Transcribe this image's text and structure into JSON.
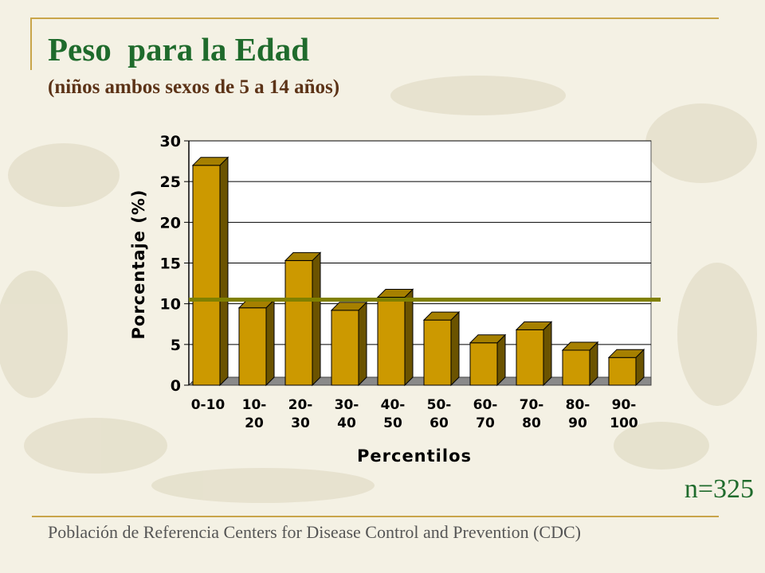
{
  "slide": {
    "title": "Peso  para la Edad",
    "subtitle": "(niños ambos sexos de 5 a 14 años)",
    "sample_size": "n=325",
    "footer": "Población de Referencia Centers for Disease Control and Prevention (CDC)"
  },
  "colors": {
    "bar_front": "#cc9900",
    "bar_side": "#6b5300",
    "bar_top": "#a68000",
    "reference_line": "#808000",
    "title": "#1f6b2c",
    "accent_rule": "#c9a54a"
  },
  "chart_data": {
    "type": "bar",
    "categories": [
      "0-10",
      "10-20",
      "20-30",
      "30-40",
      "40-50",
      "50-60",
      "60-70",
      "70-80",
      "80-90",
      "90-100"
    ],
    "category_labels": [
      [
        "0-10"
      ],
      [
        "10-",
        "20"
      ],
      [
        "20-",
        "30"
      ],
      [
        "30-",
        "40"
      ],
      [
        "40-",
        "50"
      ],
      [
        "50-",
        "60"
      ],
      [
        "60-",
        "70"
      ],
      [
        "70-",
        "80"
      ],
      [
        "80-",
        "90"
      ],
      [
        "90-",
        "100"
      ]
    ],
    "values": [
      27,
      9.5,
      15.3,
      9.2,
      10.8,
      8,
      5.2,
      6.8,
      4.3,
      3.4
    ],
    "reference_line": 10.5,
    "xlabel": "Percentilos",
    "ylabel": "Porcentaje (%)",
    "ylim": [
      0,
      30
    ],
    "yticks": [
      0,
      5,
      10,
      15,
      20,
      25,
      30
    ],
    "grid": true,
    "legend": "none",
    "style": "3d-bar"
  }
}
